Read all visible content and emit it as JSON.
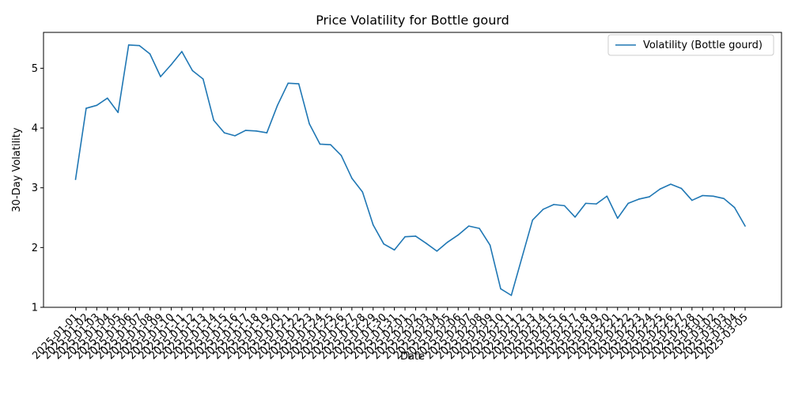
{
  "chart_data": {
    "type": "line",
    "title": "Price Volatility for Bottle gourd",
    "xlabel": "Date",
    "ylabel": "30-Day Volatility",
    "ylim": [
      1,
      5.6
    ],
    "yticks": [
      "1",
      "2",
      "3",
      "4",
      "5"
    ],
    "grid": false,
    "legend_position": "top-right",
    "x": [
      "2025-01-01",
      "2025-01-02",
      "2025-01-03",
      "2025-01-04",
      "2025-01-05",
      "2025-01-06",
      "2025-01-07",
      "2025-01-08",
      "2025-01-09",
      "2025-01-10",
      "2025-01-11",
      "2025-01-12",
      "2025-01-13",
      "2025-01-14",
      "2025-01-15",
      "2025-01-16",
      "2025-01-17",
      "2025-01-18",
      "2025-01-19",
      "2025-01-20",
      "2025-01-21",
      "2025-01-22",
      "2025-01-23",
      "2025-01-24",
      "2025-01-25",
      "2025-01-26",
      "2025-01-27",
      "2025-01-28",
      "2025-01-29",
      "2025-01-30",
      "2025-01-31",
      "2025-02-01",
      "2025-02-02",
      "2025-02-03",
      "2025-02-04",
      "2025-02-05",
      "2025-02-06",
      "2025-02-07",
      "2025-02-08",
      "2025-02-09",
      "2025-02-10",
      "2025-02-11",
      "2025-02-12",
      "2025-02-13",
      "2025-02-14",
      "2025-02-15",
      "2025-02-16",
      "2025-02-17",
      "2025-02-18",
      "2025-02-19",
      "2025-02-20",
      "2025-02-21",
      "2025-02-22",
      "2025-02-23",
      "2025-02-24",
      "2025-02-25",
      "2025-02-26",
      "2025-02-27",
      "2025-02-28",
      "2025-03-01",
      "2025-03-02",
      "2025-03-03",
      "2025-03-04",
      "2025-03-05"
    ],
    "series": [
      {
        "name": "Volatility (Bottle gourd)",
        "color": "#1f77b4",
        "values": [
          3.14,
          4.33,
          4.38,
          4.5,
          4.26,
          5.39,
          5.38,
          5.24,
          4.86,
          5.06,
          5.28,
          4.96,
          4.82,
          4.13,
          3.92,
          3.87,
          3.96,
          3.95,
          3.92,
          4.38,
          4.75,
          4.74,
          4.07,
          3.73,
          3.72,
          3.54,
          3.16,
          2.93,
          2.38,
          2.06,
          1.96,
          2.18,
          2.19,
          2.07,
          1.94,
          2.09,
          2.21,
          2.36,
          2.32,
          2.04,
          1.31,
          1.2,
          1.83,
          2.46,
          2.64,
          2.72,
          2.7,
          2.51,
          2.74,
          2.73,
          2.86,
          2.49,
          2.74,
          2.81,
          2.85,
          2.98,
          3.06,
          2.99,
          2.79,
          2.87,
          2.86,
          2.82,
          2.67,
          2.36
        ]
      }
    ]
  }
}
